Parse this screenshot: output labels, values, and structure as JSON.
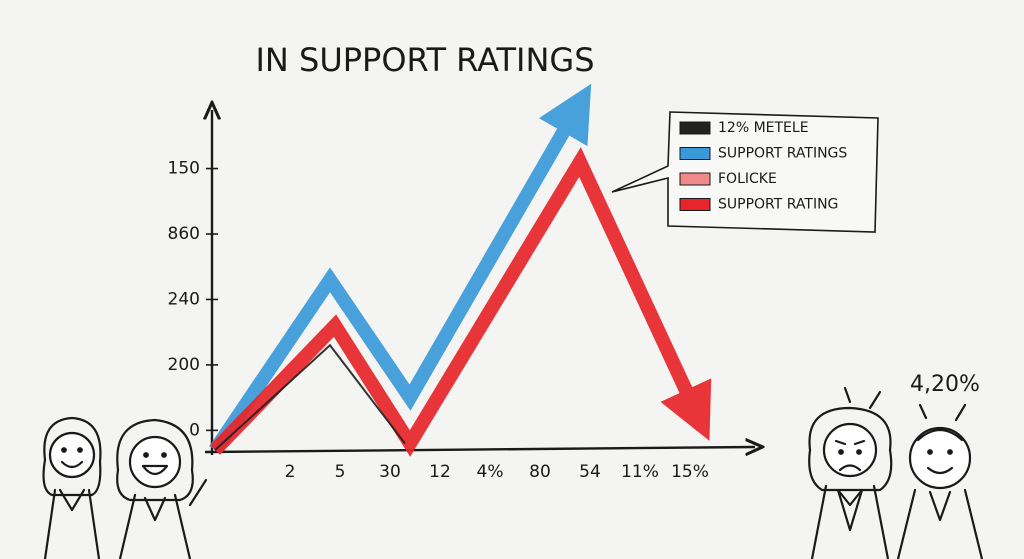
{
  "chart_data": {
    "type": "line",
    "title": "IN SUPPORT RATINGS",
    "categories": [
      "2",
      "5",
      "30",
      "12",
      "4%",
      "80",
      "54",
      "11%",
      "15%"
    ],
    "xlim": [
      -1.5,
      9.3
    ],
    "ylim": [
      -0.3,
      5.2
    ],
    "yticks": [
      0,
      {
        "value": 1,
        "label": "200"
      },
      {
        "value": 2,
        "label": "240"
      },
      {
        "value": 3,
        "label": "860"
      },
      {
        "value": 4,
        "label": "150"
      }
    ],
    "series": [
      {
        "name": "12% METELE",
        "color": "#222222",
        "x": [
          -1.5,
          0.8,
          2.3
        ],
        "values": [
          -0.3,
          1.3,
          -0.2
        ]
      },
      {
        "name": "SUPPORT RATINGS",
        "color": "#3a9ad9",
        "x": [
          -1.5,
          0.8,
          2.4,
          5.8
        ],
        "values": [
          -0.3,
          2.3,
          0.5,
          5.0
        ]
      },
      {
        "name": "FOLICKE",
        "color": "#f08a8a",
        "x": [],
        "values": []
      },
      {
        "name": "SUPPORT RATING",
        "color": "#e8252a",
        "x": [
          -1.5,
          0.9,
          2.4,
          5.8,
          8.2
        ],
        "values": [
          -0.3,
          1.6,
          -0.2,
          4.1,
          0.15
        ]
      }
    ],
    "annotations": [
      "4,20%"
    ]
  }
}
